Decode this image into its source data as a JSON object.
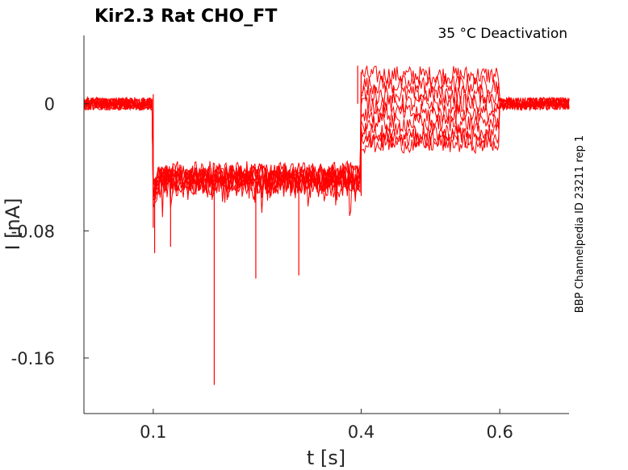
{
  "chart_data": {
    "type": "line",
    "title": "Kir2.3  Rat  CHO_FT",
    "subtitle": "35 °C  Deactivation",
    "side_note": "BBP Channelpedia ID 23211 rep 1",
    "xlabel": "t [s]",
    "ylabel": "I [nA]",
    "xlim": [
      0.0,
      0.7
    ],
    "ylim": [
      -0.195,
      0.043
    ],
    "x_ticks": [
      0.1,
      0.4,
      0.6
    ],
    "x_tick_labels": [
      "0.1",
      "0.4",
      "0.6"
    ],
    "y_ticks": [
      0,
      -0.08,
      -0.16
    ],
    "y_tick_labels": [
      "0",
      "-0.08",
      "-0.16"
    ],
    "grid": false,
    "series_color": "#ff0000",
    "protocol_segments_s": [
      0.0,
      0.1,
      0.4,
      0.6,
      0.7
    ],
    "traces": [
      {
        "baseline": 0.0,
        "step1_mean": -0.052,
        "step2_mean": 0.018
      },
      {
        "baseline": 0.0,
        "step1_mean": -0.05,
        "step2_mean": 0.012
      },
      {
        "baseline": 0.0,
        "step1_mean": -0.049,
        "step2_mean": 0.006
      },
      {
        "baseline": 0.0,
        "step1_mean": -0.048,
        "step2_mean": 0.0
      },
      {
        "baseline": 0.0,
        "step1_mean": -0.047,
        "step2_mean": -0.006
      },
      {
        "baseline": 0.0,
        "step1_mean": -0.046,
        "step2_mean": -0.012
      },
      {
        "baseline": 0.0,
        "step1_mean": -0.045,
        "step2_mean": -0.018
      },
      {
        "baseline": 0.0,
        "step1_mean": -0.044,
        "step2_mean": -0.022
      },
      {
        "baseline": 0.0,
        "step1_mean": -0.043,
        "step2_mean": -0.025
      }
    ],
    "spikes": [
      {
        "x": 0.102,
        "y": -0.094
      },
      {
        "x": 0.188,
        "y": -0.177
      },
      {
        "x": 0.248,
        "y": -0.11
      },
      {
        "x": 0.31,
        "y": -0.108
      },
      {
        "x": 0.125,
        "y": -0.09
      },
      {
        "x": 0.395,
        "y": 0.024
      }
    ]
  }
}
